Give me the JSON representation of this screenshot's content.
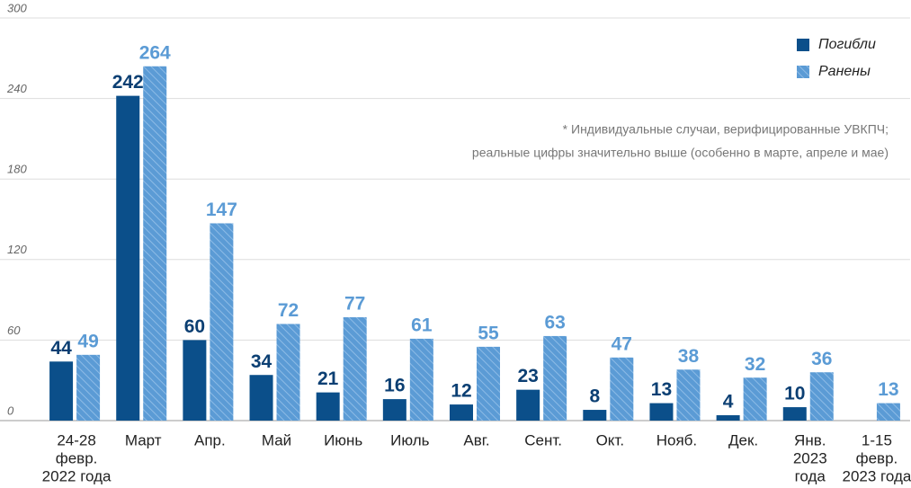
{
  "chart_data": {
    "type": "bar",
    "categories": [
      [
        "24-28",
        "февр.",
        "2022 года"
      ],
      [
        "Март"
      ],
      [
        "Апр."
      ],
      [
        "Май"
      ],
      [
        "Июнь"
      ],
      [
        "Июль"
      ],
      [
        "Авг."
      ],
      [
        "Сент."
      ],
      [
        "Окт."
      ],
      [
        "Нояб."
      ],
      [
        "Дек."
      ],
      [
        "Янв.",
        "2023",
        "года"
      ],
      [
        "1-15",
        "февр.",
        "2023 года"
      ]
    ],
    "series": [
      {
        "name": "Погибли",
        "color": "#0b4f8a",
        "label_color": "#0b3f73",
        "values": [
          44,
          242,
          60,
          34,
          21,
          16,
          12,
          23,
          8,
          13,
          4,
          10,
          null
        ]
      },
      {
        "name": "Ранены",
        "color": "#5b9bd5",
        "label_color": "#5b9bd5",
        "hatched": true,
        "values": [
          49,
          264,
          147,
          72,
          77,
          61,
          55,
          63,
          47,
          38,
          32,
          36,
          13
        ]
      }
    ],
    "ylim": [
      0,
      300
    ],
    "yticks": [
      0,
      60,
      120,
      180,
      240,
      300
    ],
    "grid": true,
    "legend": "upper right",
    "annotation": [
      "* Индивидуальные случаи, верифицированные УВКПЧ;",
      "реальные цифры значительно выше (особенно в марте, апреле и мае)"
    ]
  }
}
